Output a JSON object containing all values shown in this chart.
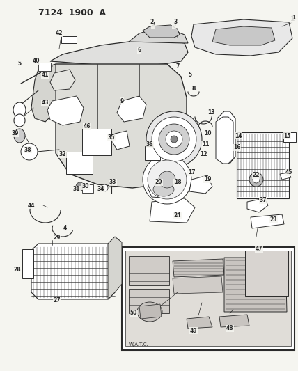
{
  "title": "7124  1900 A",
  "bg_color": "#f5f5f0",
  "line_color": "#2a2a2a",
  "fig_width": 4.28,
  "fig_height": 5.33,
  "dpi": 100,
  "title_fontsize": 9,
  "label_fontsize": 5.5
}
